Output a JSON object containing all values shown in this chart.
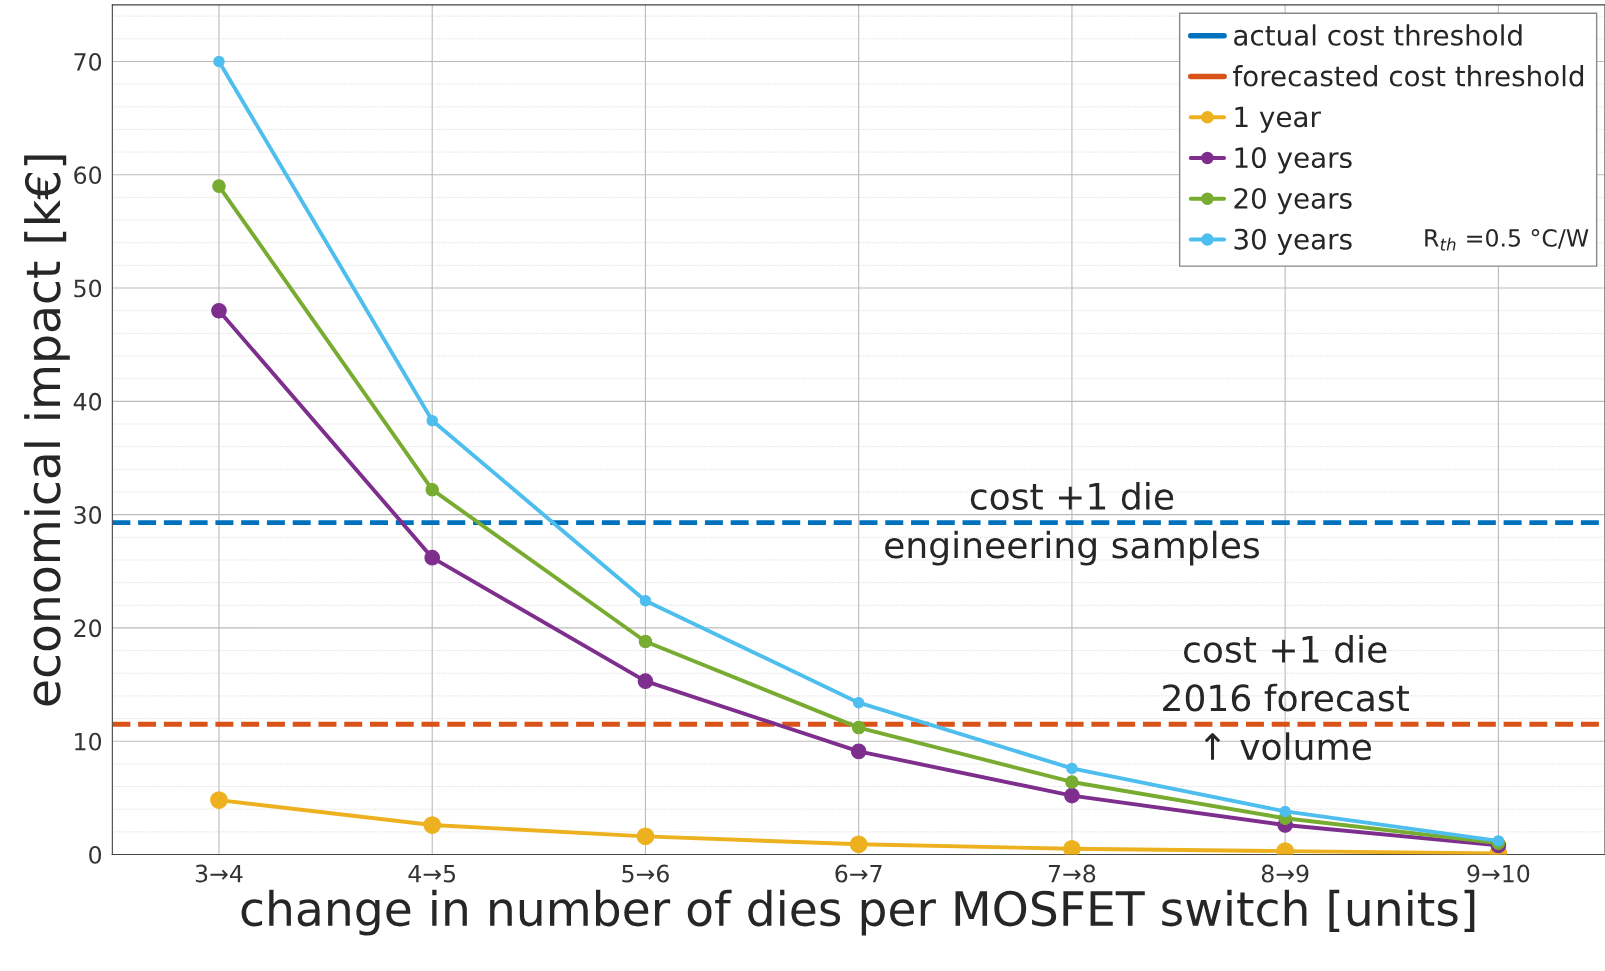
{
  "chart_data": {
    "type": "line",
    "xlabel": "change in number of dies per MOSFET switch [units]",
    "ylabel": "economical impact [k€]",
    "categories": [
      "3→4",
      "4→5",
      "5→6",
      "6→7",
      "7→8",
      "8→9",
      "9→10"
    ],
    "series": [
      {
        "name": "1 year",
        "color": "#edb120",
        "values": [
          4.8,
          2.6,
          1.6,
          0.9,
          0.5,
          0.3,
          0.1
        ]
      },
      {
        "name": "10 years",
        "color": "#7e2f8e",
        "values": [
          48,
          26.2,
          15.3,
          9.1,
          5.2,
          2.6,
          0.8
        ]
      },
      {
        "name": "20 years",
        "color": "#77ac30",
        "values": [
          59,
          32.2,
          18.8,
          11.2,
          6.4,
          3.2,
          1.0
        ]
      },
      {
        "name": "30 years",
        "color": "#4dbeee",
        "values": [
          70,
          38.3,
          22.4,
          13.4,
          7.6,
          3.8,
          1.2
        ]
      }
    ],
    "ref_lines": [
      {
        "axis": "y",
        "value": 29.3,
        "label": "actual cost threshold",
        "color": "#0072bd",
        "line_style": "dashed"
      },
      {
        "axis": "y",
        "value": 11.5,
        "label": "forecasted cost threshold",
        "color": "#d95319",
        "line_style": "dashed"
      }
    ],
    "annotations": [
      {
        "text": "cost +1 die\nengineering samples",
        "x": "7→8",
        "y": 29.3
      },
      {
        "text": "cost +1 die\n2016 forecast\n↑ volume",
        "x": "8→9",
        "y": 11.5
      },
      "R$_{th}$ =0.5 °C/W"
    ],
    "ylim": [
      0,
      75
    ],
    "yticks": [
      0,
      10,
      20,
      30,
      40,
      50,
      60,
      70
    ],
    "grid": true,
    "legend": "top right",
    "marker": "circle",
    "line_style": "solid"
  }
}
